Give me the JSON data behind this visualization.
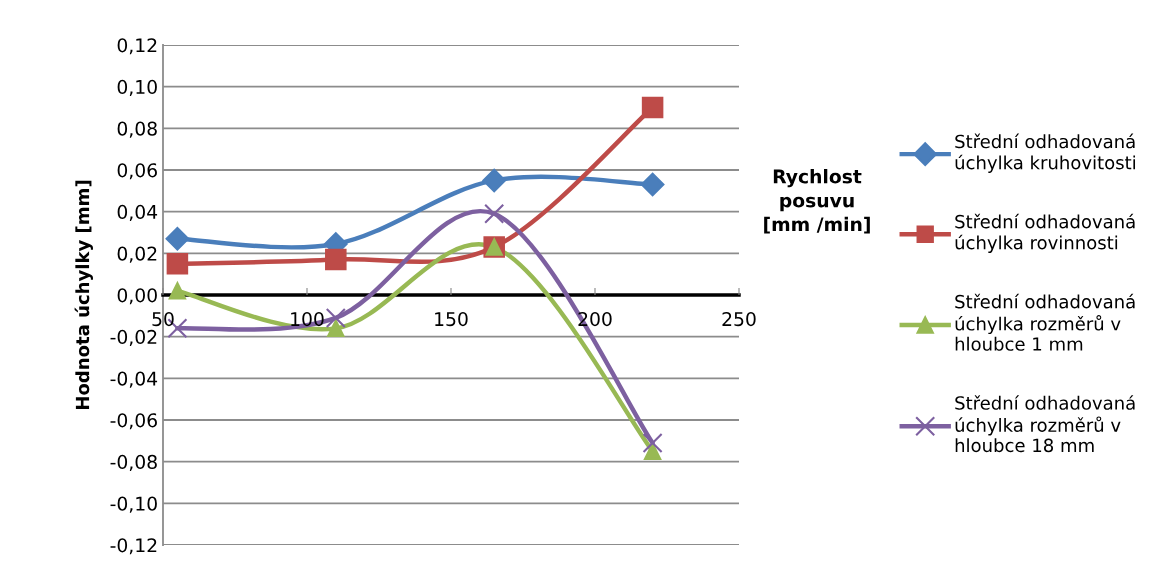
{
  "chart_data": {
    "type": "line",
    "xlabel": "Rychlost\nposuvu\n[mm /min]",
    "ylabel": "Hodnota úchylky [mm]",
    "x": [
      55,
      110,
      165,
      220
    ],
    "series": [
      {
        "name": "Střední odhadovaná\núchylka kruhovitosti",
        "color": "#4a7ebb",
        "marker": "diamond",
        "values": [
          0.027,
          0.0245,
          0.055,
          0.053
        ]
      },
      {
        "name": "Střední odhadovaná\núchylka rovinnosti",
        "color": "#be4b48",
        "marker": "square",
        "values": [
          0.015,
          0.017,
          0.023,
          0.09
        ]
      },
      {
        "name": "Střední odhadovaná\núchylka rozměrů v\nhloubce 1 mm",
        "color": "#98b954",
        "marker": "triangle",
        "values": [
          0.002,
          -0.016,
          0.023,
          -0.075
        ]
      },
      {
        "name": "Střední odhadovaná\núchylka rozměrů v\nhloubce 18 mm",
        "color": "#7d60a0",
        "marker": "cross",
        "values": [
          -0.016,
          -0.011,
          0.039,
          -0.071
        ]
      }
    ],
    "xlim": [
      50,
      250
    ],
    "xticks": [
      50,
      100,
      150,
      200,
      250
    ],
    "ylim": [
      -0.12,
      0.12
    ],
    "yticks": [
      {
        "value": -0.12,
        "label": "-0,12"
      },
      {
        "value": -0.1,
        "label": "-0,10"
      },
      {
        "value": -0.08,
        "label": "-0,08"
      },
      {
        "value": -0.06,
        "label": "-0,06"
      },
      {
        "value": -0.04,
        "label": "-0,04"
      },
      {
        "value": -0.02,
        "label": "-0,02"
      },
      {
        "value": 0,
        "label": "0,00"
      },
      {
        "value": 0.02,
        "label": "0,02"
      },
      {
        "value": 0.04,
        "label": "0,04"
      },
      {
        "value": 0.06,
        "label": "0,06"
      },
      {
        "value": 0.08,
        "label": "0,08"
      },
      {
        "value": 0.1,
        "label": "0,10"
      },
      {
        "value": 0.12,
        "label": "0,12"
      }
    ],
    "grid": "y",
    "legend": "right",
    "line_style": "solid"
  }
}
